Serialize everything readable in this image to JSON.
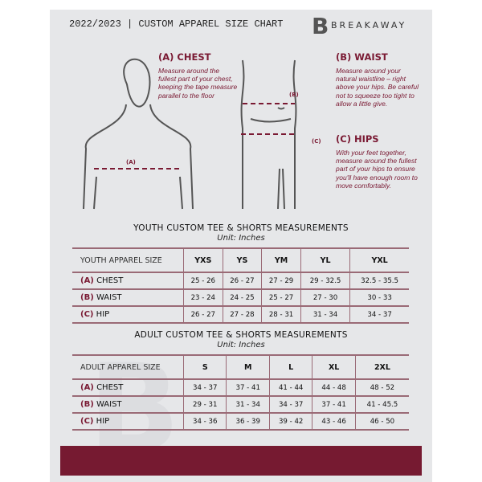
{
  "header": {
    "title": "2022/2023  |  CUSTOM APPAREL SIZE CHART",
    "brand": "BREAKAWAY",
    "logo_letter": "B"
  },
  "measure": {
    "chest": {
      "title": "(A) CHEST",
      "desc": "Measure around the fullest part of your chest, keeping the tape measure parallel to the floor",
      "marker": "(A)"
    },
    "waist": {
      "title": "(B) WAIST",
      "desc": "Measure around your natural waistline – right above your hips. Be careful not to squeeze too tight to allow a little give.",
      "marker": "(B)"
    },
    "hips": {
      "title": "(C) HIPS",
      "desc": "With your feet together, measure around the fullest part of your hips to ensure you'll have enough room to move comfortably.",
      "marker": "(C)"
    }
  },
  "youth": {
    "heading": "YOUTH CUSTOM TEE & SHORTS MEASUREMENTS",
    "unit": "Unit: Inches",
    "label": "YOUTH APPAREL SIZE",
    "sizes": [
      "YXS",
      "YS",
      "YM",
      "YL",
      "YXL"
    ],
    "rows": [
      {
        "code": "(A)",
        "name": "CHEST",
        "values": [
          "25 - 26",
          "26 - 27",
          "27 - 29",
          "29 - 32.5",
          "32.5 - 35.5"
        ]
      },
      {
        "code": "(B)",
        "name": "WAIST",
        "values": [
          "23 - 24",
          "24 - 25",
          "25 - 27",
          "27 - 30",
          "30 - 33"
        ]
      },
      {
        "code": "(C)",
        "name": "HIP",
        "values": [
          "26 - 27",
          "27 - 28",
          "28 - 31",
          "31 - 34",
          "34 - 37"
        ]
      }
    ]
  },
  "adult": {
    "heading": "ADULT CUSTOM TEE & SHORTS MEASUREMENTS",
    "unit": "Unit: Inches",
    "label": "ADULT APPAREL SIZE",
    "sizes": [
      "S",
      "M",
      "L",
      "XL",
      "2XL"
    ],
    "rows": [
      {
        "code": "(A)",
        "name": "CHEST",
        "values": [
          "34 - 37",
          "37 - 41",
          "41 - 44",
          "44 - 48",
          "48 - 52"
        ]
      },
      {
        "code": "(B)",
        "name": "WAIST",
        "values": [
          "29 - 31",
          "31 - 34",
          "34 - 37",
          "37 - 41",
          "41 - 45.5"
        ]
      },
      {
        "code": "(C)",
        "name": "HIP",
        "values": [
          "34 - 36",
          "36 - 39",
          "39 - 42",
          "43 - 46",
          "46 - 50"
        ]
      }
    ]
  },
  "colors": {
    "accent": "#761a31",
    "panel": "#e6e7e9"
  }
}
